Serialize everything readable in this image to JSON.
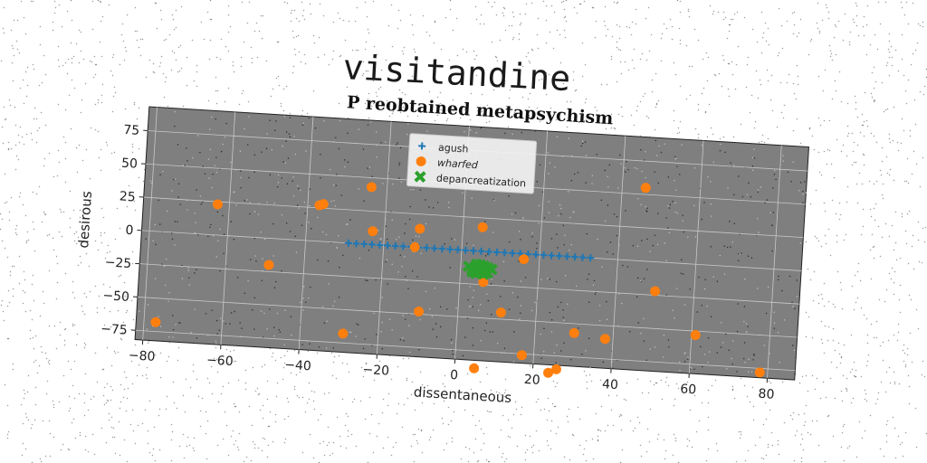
{
  "figure": {
    "title": "visitandine"
  },
  "chart_data": {
    "type": "scatter",
    "title": "P reobtained metapsychism",
    "xlabel": "dissentaneous",
    "ylabel": "desirous",
    "xlim": [
      -82,
      87
    ],
    "ylim": [
      -82,
      93
    ],
    "xticks": [
      -80,
      -60,
      -40,
      -20,
      0,
      20,
      40,
      60,
      80
    ],
    "yticks": [
      -75,
      -50,
      -25,
      0,
      25,
      50,
      75
    ],
    "grid": true,
    "legend_position": "upper center",
    "colors": {
      "agush": "#1f77b4",
      "wharfed": "#ff7f0e",
      "depancreatization": "#2ca02c",
      "plot_bg": "#7f7f7f"
    },
    "series": [
      {
        "name": "agush",
        "marker": "plus",
        "x": [
          -29,
          -27,
          -25,
          -23,
          -21,
          -19,
          -17,
          -15,
          -13,
          -11,
          -9,
          -7,
          -5,
          -3,
          -1,
          1,
          3,
          5,
          7,
          9,
          11,
          13,
          15,
          17,
          19,
          21,
          23,
          25,
          27,
          29,
          31,
          33
        ],
        "y": [
          0,
          0,
          0,
          0,
          0,
          0,
          0,
          0,
          0,
          0,
          0,
          0,
          0,
          0,
          0,
          0,
          0,
          0,
          0,
          0,
          0,
          0,
          0,
          0,
          0,
          0,
          0,
          0,
          0,
          0,
          0,
          0
        ]
      },
      {
        "name": "wharfed",
        "marker": "circle",
        "x": [
          -77,
          -63,
          -49,
          -37,
          -36,
          -29,
          -24,
          -23,
          -12,
          -11,
          -10,
          5,
          5,
          6,
          11,
          16,
          17,
          24,
          26,
          30,
          38,
          46,
          50,
          61,
          78
        ],
        "y": [
          -68,
          23,
          -20,
          27,
          28,
          -68,
          43,
          10,
          0,
          14,
          -48,
          -88,
          18,
          -23,
          -45,
          -4,
          -76,
          -88,
          -85,
          -57,
          -60,
          55,
          -22,
          -53,
          -78
        ]
      },
      {
        "name": "depancreatization",
        "marker": "x",
        "x": [
          2,
          3,
          4,
          5,
          6,
          7,
          8,
          3,
          4,
          5,
          6,
          7,
          4,
          5,
          6
        ],
        "y": [
          -12,
          -14,
          -12,
          -13,
          -14,
          -12,
          -13,
          -16,
          -17,
          -16,
          -17,
          -16,
          -10,
          -10,
          -11
        ]
      }
    ]
  }
}
